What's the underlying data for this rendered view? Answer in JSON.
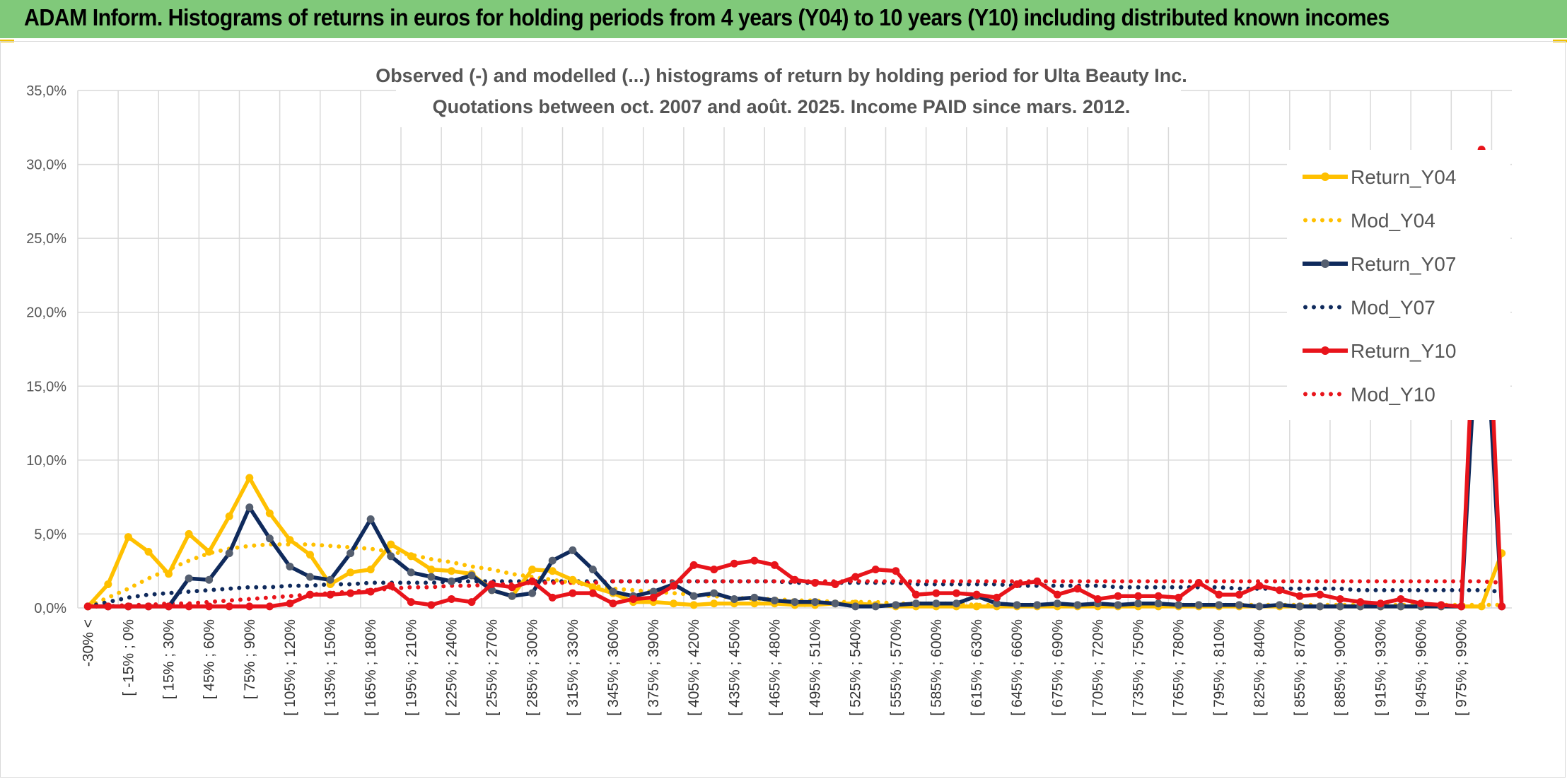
{
  "header": {
    "title": "ADAM Inform. Histograms of returns in euros for holding periods from 4 years (Y04) to 10 years (Y10) including distributed known incomes"
  },
  "chart_data": {
    "type": "line",
    "title_lines": [
      "Observed (-) and modelled (...) histograms of return by holding period for Ulta Beauty Inc.",
      "Quotations between oct. 2007 and août. 2025. Income PAID since mars. 2012."
    ],
    "y_tick_labels": [
      "0,0%",
      "5,0%",
      "10,0%",
      "15,0%",
      "20,0%",
      "25,0%",
      "30,0%",
      "35,0%"
    ],
    "ylim": [
      0,
      35
    ],
    "y_unit": "%",
    "grid": true,
    "legend_position": "right",
    "x_tick_labels": [
      "-30% <",
      "[ -15% ; 0%",
      "[ 15% ; 30%",
      "[ 45% ; 60%",
      "[ 75% ; 90%",
      "[ 105% ; 120%",
      "[ 135% ; 150%",
      "[ 165% ; 180%",
      "[ 195% ; 210%",
      "[ 225% ; 240%",
      "[ 255% ; 270%",
      "[ 285% ; 300%",
      "[ 315% ; 330%",
      "[ 345% ; 360%",
      "[ 375% ; 390%",
      "[ 405% ; 420%",
      "[ 435% ; 450%",
      "[ 465% ; 480%",
      "[ 495% ; 510%",
      "[ 525% ; 540%",
      "[ 555% ; 570%",
      "[ 585% ; 600%",
      "[ 615% ; 630%",
      "[ 645% ; 660%",
      "[ 675% ; 690%",
      "[ 705% ; 720%",
      "[ 735% ; 750%",
      "[ 765% ; 780%",
      "[ 795% ; 810%",
      "[ 825% ; 840%",
      "[ 855% ; 870%",
      "[ 885% ; 900%",
      "[ 915% ; 930%",
      "[ 945% ; 960%",
      "[ 975% ; 990%"
    ],
    "n_categories": 71,
    "series": [
      {
        "name": "Return_Y04",
        "style": "solid",
        "color": "#ffc000",
        "values": [
          0.1,
          1.6,
          4.8,
          3.8,
          2.3,
          5.0,
          3.8,
          6.2,
          8.8,
          6.4,
          4.6,
          3.6,
          1.6,
          2.4,
          2.6,
          4.3,
          3.5,
          2.6,
          2.5,
          2.3,
          1.2,
          0.8,
          2.6,
          2.5,
          1.9,
          1.4,
          1.0,
          0.4,
          0.4,
          0.3,
          0.2,
          0.3,
          0.3,
          0.3,
          0.3,
          0.2,
          0.2,
          0.3,
          0.3,
          0.2,
          0.1,
          0.1,
          0.1,
          0.1,
          0.1,
          0.1,
          0.1,
          0.1,
          0.1,
          0.1,
          0.1,
          0.1,
          0.1,
          0.1,
          0.1,
          0.1,
          0.1,
          0.1,
          0.1,
          0.1,
          0.1,
          0.1,
          0.1,
          0.1,
          0.1,
          0.1,
          0.1,
          0.1,
          0.1,
          0.1,
          3.7
        ]
      },
      {
        "name": "Mod_Y04",
        "style": "dotted",
        "color": "#ffc000",
        "values": [
          0.1,
          0.7,
          1.3,
          2.0,
          2.6,
          3.2,
          3.7,
          4.0,
          4.2,
          4.3,
          4.3,
          4.3,
          4.2,
          4.1,
          4.0,
          3.8,
          3.6,
          3.3,
          3.1,
          2.8,
          2.6,
          2.3,
          2.1,
          1.9,
          1.7,
          1.5,
          1.3,
          1.2,
          1.1,
          1.0,
          0.9,
          0.8,
          0.7,
          0.6,
          0.6,
          0.5,
          0.5,
          0.4,
          0.4,
          0.4,
          0.3,
          0.3,
          0.3,
          0.3,
          0.2,
          0.2,
          0.2,
          0.2,
          0.2,
          0.2,
          0.2,
          0.2,
          0.2,
          0.2,
          0.2,
          0.2,
          0.2,
          0.2,
          0.2,
          0.2,
          0.2,
          0.2,
          0.2,
          0.2,
          0.2,
          0.2,
          0.2,
          0.2,
          0.2,
          0.2,
          0.2
        ]
      },
      {
        "name": "Return_Y07",
        "style": "solid",
        "color": "#0f2a5c",
        "values": [
          0.1,
          0.1,
          0.1,
          0.1,
          0.1,
          2.0,
          1.9,
          3.7,
          6.8,
          4.7,
          2.8,
          2.1,
          1.9,
          3.7,
          6.0,
          3.5,
          2.4,
          2.1,
          1.8,
          2.2,
          1.2,
          0.8,
          1.0,
          3.2,
          3.9,
          2.6,
          1.1,
          0.8,
          1.1,
          1.6,
          0.8,
          1.0,
          0.6,
          0.7,
          0.5,
          0.4,
          0.4,
          0.3,
          0.1,
          0.1,
          0.2,
          0.3,
          0.3,
          0.3,
          0.8,
          0.3,
          0.2,
          0.2,
          0.3,
          0.2,
          0.3,
          0.2,
          0.3,
          0.3,
          0.2,
          0.2,
          0.2,
          0.2,
          0.1,
          0.2,
          0.1,
          0.1,
          0.1,
          0.1,
          0.1,
          0.1,
          0.1,
          0.1,
          0.1,
          24.4,
          0.1
        ]
      },
      {
        "name": "Mod_Y07",
        "style": "dotted",
        "color": "#0f2a5c",
        "values": [
          0.1,
          0.4,
          0.7,
          0.9,
          1.0,
          1.1,
          1.2,
          1.3,
          1.4,
          1.4,
          1.5,
          1.5,
          1.6,
          1.6,
          1.7,
          1.7,
          1.7,
          1.7,
          1.8,
          1.8,
          1.8,
          1.8,
          1.8,
          1.8,
          1.8,
          1.8,
          1.8,
          1.8,
          1.8,
          1.8,
          1.8,
          1.8,
          1.8,
          1.8,
          1.8,
          1.7,
          1.7,
          1.7,
          1.7,
          1.7,
          1.7,
          1.6,
          1.6,
          1.6,
          1.6,
          1.6,
          1.5,
          1.5,
          1.5,
          1.5,
          1.5,
          1.4,
          1.4,
          1.4,
          1.4,
          1.4,
          1.4,
          1.3,
          1.3,
          1.3,
          1.3,
          1.3,
          1.3,
          1.2,
          1.2,
          1.2,
          1.2,
          1.2,
          1.2,
          1.2,
          1.1
        ]
      },
      {
        "name": "Return_Y10",
        "style": "solid",
        "color": "#e8141b",
        "values": [
          0.1,
          0.1,
          0.1,
          0.1,
          0.1,
          0.1,
          0.1,
          0.1,
          0.1,
          0.1,
          0.3,
          0.9,
          0.9,
          1.0,
          1.1,
          1.5,
          0.4,
          0.2,
          0.6,
          0.4,
          1.6,
          1.4,
          1.8,
          0.7,
          1.0,
          1.0,
          0.3,
          0.6,
          0.7,
          1.5,
          2.9,
          2.6,
          3.0,
          3.2,
          2.9,
          1.9,
          1.7,
          1.6,
          2.1,
          2.6,
          2.5,
          0.9,
          1.0,
          1.0,
          0.9,
          0.7,
          1.6,
          1.8,
          0.9,
          1.3,
          0.6,
          0.8,
          0.8,
          0.8,
          0.7,
          1.7,
          0.9,
          0.9,
          1.5,
          1.2,
          0.8,
          0.9,
          0.6,
          0.4,
          0.3,
          0.6,
          0.3,
          0.2,
          0.1,
          31.0,
          0.1
        ]
      },
      {
        "name": "Mod_Y10",
        "style": "dotted",
        "color": "#e8141b",
        "values": [
          0.1,
          0.1,
          0.2,
          0.2,
          0.3,
          0.3,
          0.4,
          0.5,
          0.6,
          0.7,
          0.8,
          0.9,
          1.0,
          1.1,
          1.2,
          1.3,
          1.4,
          1.4,
          1.5,
          1.5,
          1.6,
          1.6,
          1.7,
          1.7,
          1.7,
          1.7,
          1.8,
          1.8,
          1.8,
          1.8,
          1.8,
          1.8,
          1.8,
          1.8,
          1.8,
          1.8,
          1.8,
          1.8,
          1.8,
          1.8,
          1.8,
          1.8,
          1.8,
          1.8,
          1.8,
          1.8,
          1.8,
          1.8,
          1.8,
          1.8,
          1.8,
          1.8,
          1.8,
          1.8,
          1.8,
          1.8,
          1.8,
          1.8,
          1.8,
          1.8,
          1.8,
          1.8,
          1.8,
          1.8,
          1.8,
          1.8,
          1.8,
          1.8,
          1.8,
          1.8,
          1.7
        ]
      }
    ]
  }
}
